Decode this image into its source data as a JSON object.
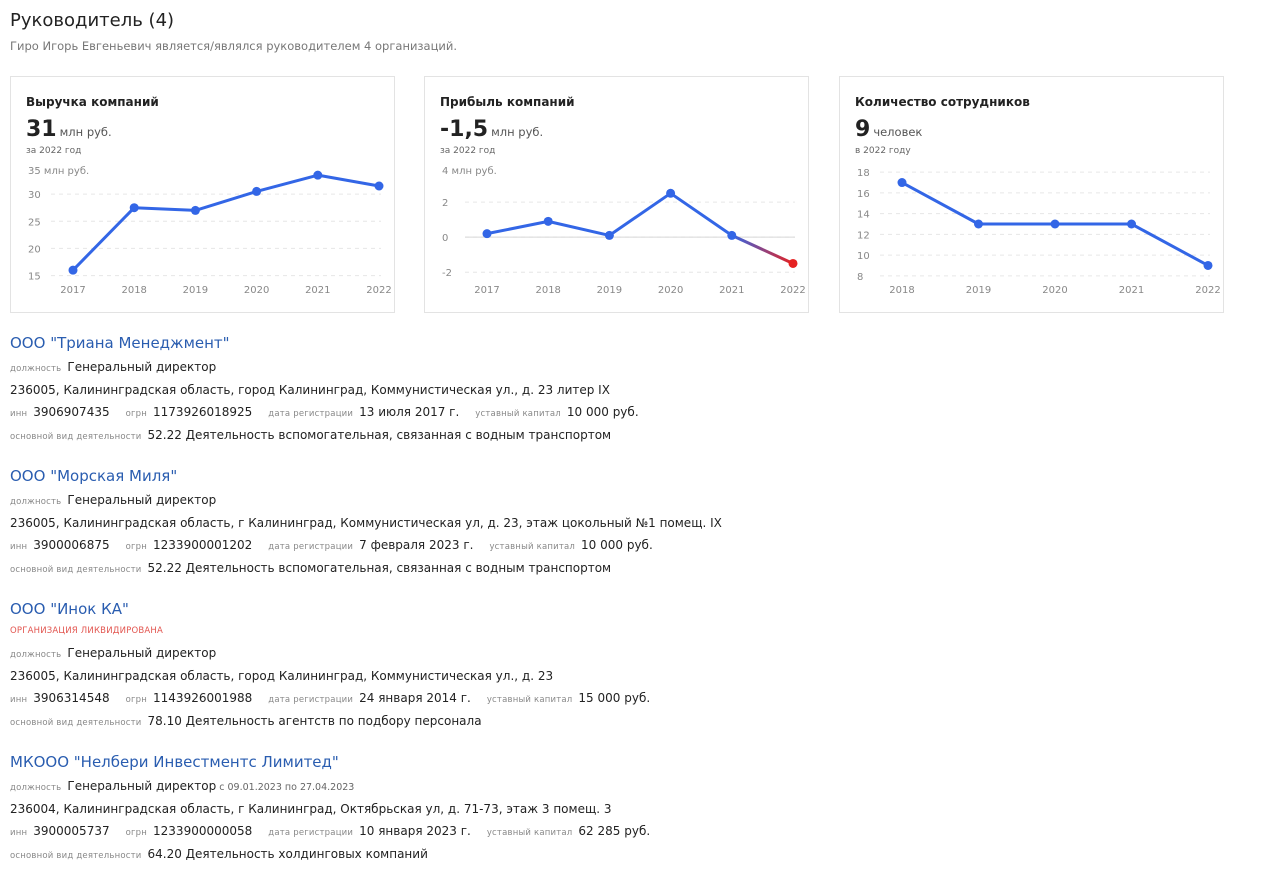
{
  "header": {
    "title": "Руководитель (4)",
    "subtitle": "Гиро Игорь Евгеньевич является/являлся руководителем 4 организаций."
  },
  "cards": [
    {
      "title": "Выручка компаний",
      "value": "31",
      "unit": "млн руб.",
      "period": "за 2022 год",
      "chart_data": {
        "type": "line",
        "x": [
          "2017",
          "2018",
          "2019",
          "2020",
          "2021",
          "2022"
        ],
        "values": [
          16,
          27.5,
          27,
          30.5,
          33.5,
          31.5
        ],
        "ylim": [
          14,
          35
        ],
        "yticks": [
          15,
          20,
          25,
          30
        ],
        "top_label": "35 млн руб.",
        "color": "#3366e6"
      }
    },
    {
      "title": "Прибыль компаний",
      "value": "-1,5",
      "unit": "млн руб.",
      "period": "за 2022 год",
      "chart_data": {
        "type": "line",
        "x": [
          "2017",
          "2018",
          "2019",
          "2020",
          "2021",
          "2022"
        ],
        "values": [
          0.2,
          0.9,
          0.1,
          2.5,
          0.1,
          -1.5
        ],
        "ylim": [
          -2.5,
          4
        ],
        "yticks": [
          -2,
          0,
          2
        ],
        "top_label": "4 млн руб.",
        "color": "#3366e6",
        "negative_color": "#e52222"
      }
    },
    {
      "title": "Количество сотрудников",
      "value": "9",
      "unit": "человек",
      "period": "в 2022 году",
      "chart_data": {
        "type": "line",
        "x": [
          "2018",
          "2019",
          "2020",
          "2021",
          "2022"
        ],
        "values": [
          17,
          13,
          13,
          13,
          9
        ],
        "ylim": [
          7.5,
          18.5
        ],
        "yticks": [
          8,
          10,
          12,
          14,
          16,
          18
        ],
        "color": "#3366e6"
      }
    }
  ],
  "labels": {
    "position": "должность",
    "inn": "инн",
    "ogrn": "огрн",
    "reg_date": "дата регистрации",
    "capital": "уставный капитал",
    "activity": "основной вид деятельности"
  },
  "orgs": [
    {
      "name": "ООО \"Триана Менеджмент\"",
      "position": "Генеральный директор",
      "address": "236005, Калининградская область, город Калининград, Коммунистическая ул., д. 23 литер IX",
      "inn": "3906907435",
      "ogrn": "1173926018925",
      "reg_date": "13 июля 2017 г.",
      "capital": "10 000 руб.",
      "activity": "52.22 Деятельность вспомогательная, связанная с водным транспортом"
    },
    {
      "name": "ООО \"Морская Миля\"",
      "position": "Генеральный директор",
      "address": "236005, Калининградская область, г Калининград, Коммунистическая ул, д. 23, этаж цокольный №1 помещ. IX",
      "inn": "3900006875",
      "ogrn": "1233900001202",
      "reg_date": "7 февраля 2023 г.",
      "capital": "10 000 руб.",
      "activity": "52.22 Деятельность вспомогательная, связанная с водным транспортом"
    },
    {
      "name": "ООО \"Инок КА\"",
      "status": "организация ликвидирована",
      "position": "Генеральный директор",
      "address": "236005, Калининградская область, город Калининград, Коммунистическая ул., д. 23",
      "inn": "3906314548",
      "ogrn": "1143926001988",
      "reg_date": "24 января 2014 г.",
      "capital": "15 000 руб.",
      "activity": "78.10 Деятельность агентств по подбору персонала"
    },
    {
      "name": "МКООО \"Нелбери Инвестментс Лимитед\"",
      "position": "Генеральный директор",
      "date_range": "с 09.01.2023 по 27.04.2023",
      "address": "236004, Калининградская область, г Калининград, Октябрьская ул, д. 71-73, этаж 3 помещ. 3",
      "inn": "3900005737",
      "ogrn": "1233900000058",
      "reg_date": "10 января 2023 г.",
      "capital": "62 285 руб.",
      "activity": "64.20 Деятельность холдинговых компаний"
    }
  ]
}
